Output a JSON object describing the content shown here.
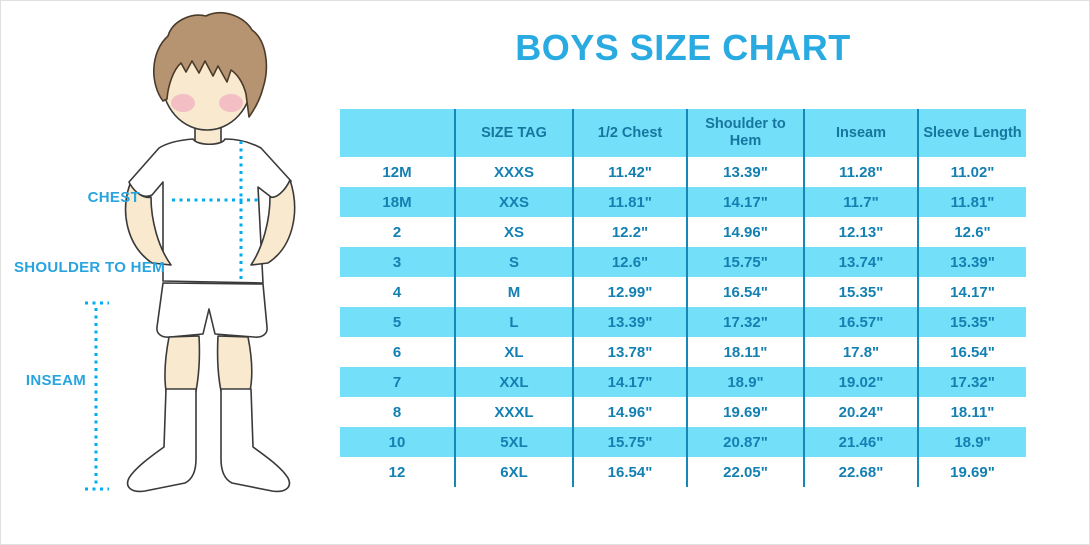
{
  "title": "BOYS SIZE CHART",
  "figure": {
    "labels": {
      "chest": "CHEST",
      "shoulder_to_hem": "SHOULDER TO HEM",
      "inseam": "INSEAM"
    }
  },
  "chart_data": {
    "type": "table",
    "title": "BOYS SIZE CHART",
    "columns": [
      "",
      "SIZE TAG",
      "1/2 Chest",
      "Shoulder to Hem",
      "Inseam",
      "Sleeve Length"
    ],
    "rows": [
      [
        "12M",
        "XXXS",
        "11.42\"",
        "13.39\"",
        "11.28\"",
        "11.02\""
      ],
      [
        "18M",
        "XXS",
        "11.81\"",
        "14.17\"",
        "11.7\"",
        "11.81\""
      ],
      [
        "2",
        "XS",
        "12.2\"",
        "14.96\"",
        "12.13\"",
        "12.6\""
      ],
      [
        "3",
        "S",
        "12.6\"",
        "15.75\"",
        "13.74\"",
        "13.39\""
      ],
      [
        "4",
        "M",
        "12.99\"",
        "16.54\"",
        "15.35\"",
        "14.17\""
      ],
      [
        "5",
        "L",
        "13.39\"",
        "17.32\"",
        "16.57\"",
        "15.35\""
      ],
      [
        "6",
        "XL",
        "13.78\"",
        "18.11\"",
        "17.8\"",
        "16.54\""
      ],
      [
        "7",
        "XXL",
        "14.17\"",
        "18.9\"",
        "19.02\"",
        "17.32\""
      ],
      [
        "8",
        "XXXL",
        "14.96\"",
        "19.69\"",
        "20.24\"",
        "18.11\""
      ],
      [
        "10",
        "5XL",
        "15.75\"",
        "20.87\"",
        "21.46\"",
        "18.9\""
      ],
      [
        "12",
        "6XL",
        "16.54\"",
        "22.05\"",
        "22.68\"",
        "19.69\""
      ]
    ],
    "layout": {
      "striped_rows": "header and every second data row highlighted",
      "stripe_color": "#74DFF8",
      "divider_color": "#1787B8",
      "text_color": "#1480B2"
    }
  },
  "colors": {
    "accent_blue": "#29ABE2",
    "stripe_blue": "#74DFF8",
    "table_text_blue": "#1480B2",
    "divider_blue": "#1787B8",
    "dotted_line_blue": "#00AEEF"
  }
}
